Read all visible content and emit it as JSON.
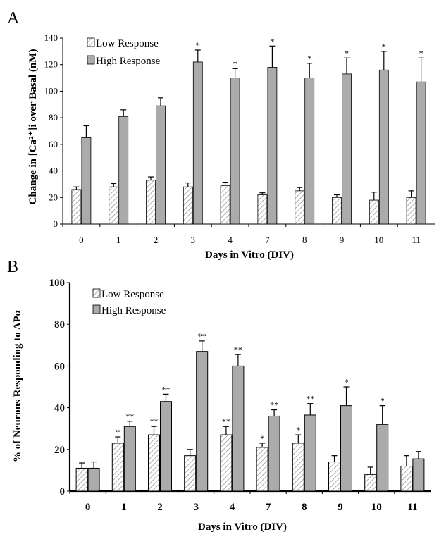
{
  "colors": {
    "low_fill": "#ffffff",
    "low_hatch": "#9a9a9a",
    "high_fill": "#ababab",
    "axis": "#000000"
  },
  "chart_data": [
    {
      "type": "bar",
      "panel_label": "A",
      "categories": [
        "0",
        "1",
        "2",
        "3",
        "4",
        "7",
        "8",
        "9",
        "10",
        "11"
      ],
      "series": [
        {
          "name": "Low Response",
          "values": [
            26,
            28,
            33,
            28,
            29,
            22,
            25,
            20,
            18,
            20
          ],
          "errors": [
            2,
            2.5,
            2.5,
            3,
            2.5,
            1.5,
            2.5,
            2,
            6,
            5
          ],
          "markers": [
            "",
            "",
            "",
            "",
            "",
            "",
            "",
            "",
            "",
            ""
          ]
        },
        {
          "name": "High Response",
          "values": [
            65,
            81,
            89,
            122,
            110,
            118,
            110,
            113,
            116,
            107
          ],
          "errors": [
            9,
            5,
            6,
            9,
            7,
            16,
            11,
            12,
            14,
            18
          ],
          "markers": [
            "",
            "",
            "",
            "*",
            "*",
            "*",
            "*",
            "*",
            "*",
            "*"
          ]
        }
      ],
      "xlabel": "Days in Vitro (DIV)",
      "ylabel": "Change in [Ca²⁺]i over Basal (nM)",
      "ylim": [
        0,
        140
      ],
      "yticks": [
        "0",
        "20",
        "40",
        "60",
        "80",
        "100",
        "120",
        "140"
      ],
      "legend": "top-left",
      "grid": false
    },
    {
      "type": "bar",
      "panel_label": "B",
      "categories": [
        "0",
        "1",
        "2",
        "3",
        "4",
        "7",
        "8",
        "9",
        "10",
        "11"
      ],
      "series": [
        {
          "name": "Low Response",
          "values": [
            11,
            23,
            27,
            17,
            27,
            21,
            23,
            14,
            8,
            12
          ],
          "errors": [
            2.5,
            3,
            4,
            3,
            4,
            2,
            4,
            3,
            3.5,
            5
          ],
          "markers": [
            "",
            "*",
            "**",
            "",
            "**",
            "*",
            "*",
            "",
            "",
            ""
          ]
        },
        {
          "name": "High Response",
          "values": [
            11,
            31,
            43,
            67,
            60,
            36,
            36.5,
            41,
            32,
            15.5
          ],
          "errors": [
            3,
            2.5,
            3.5,
            5,
            5.5,
            3,
            5.5,
            9,
            9,
            3.5
          ],
          "markers": [
            "",
            "**",
            "**",
            "**",
            "**",
            "**",
            "**",
            "*",
            "*",
            ""
          ]
        }
      ],
      "xlabel": "Days in Vitro (DIV)",
      "ylabel": "% of Neurons Responding to APα",
      "ylim": [
        0,
        100
      ],
      "yticks": [
        "0",
        "20",
        "40",
        "60",
        "80",
        "100"
      ],
      "legend": "top-left",
      "grid": false
    }
  ]
}
